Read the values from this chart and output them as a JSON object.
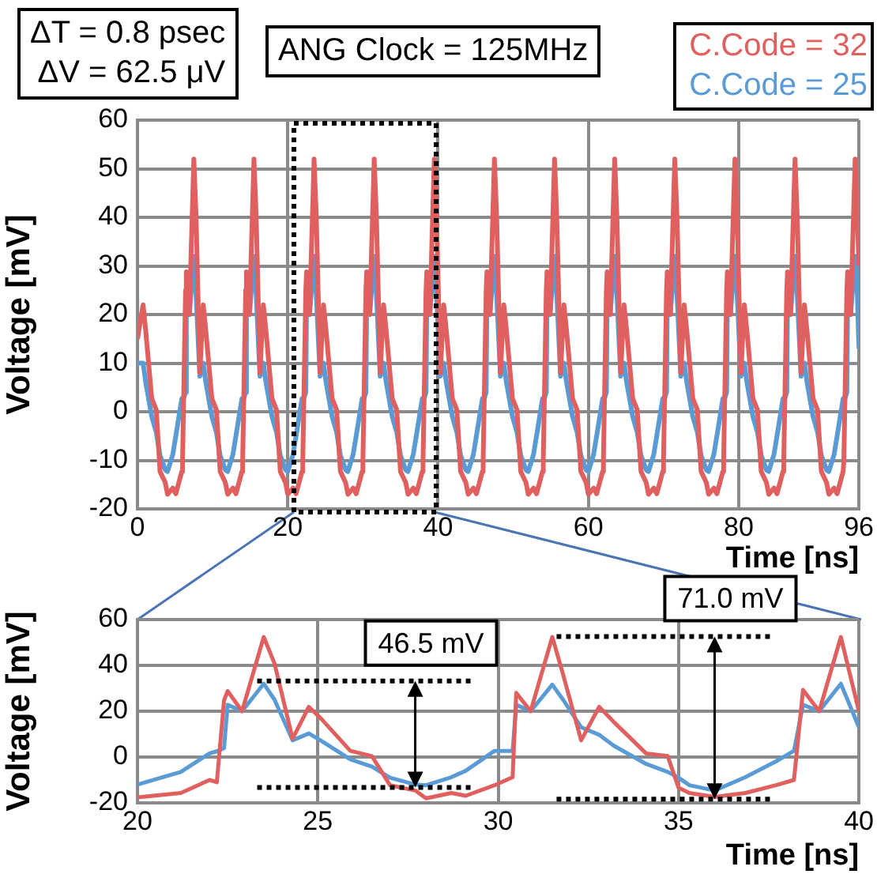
{
  "chart_data": [
    {
      "type": "line",
      "annotations": [
        "ΔT = 0.8 psec",
        "ΔV = 62.5 μV",
        "ANG Clock = 125MHz"
      ],
      "xlabel": "Time [ns]",
      "ylabel": "Voltage [mV]",
      "legend": "top right",
      "grid": true,
      "xlim": [
        0,
        96
      ],
      "xticks": [
        0,
        20,
        40,
        60,
        80,
        96
      ],
      "ylim": [
        -20,
        60
      ],
      "yticks": [
        -20,
        -10,
        0,
        10,
        20,
        30,
        40,
        50,
        60
      ],
      "x": [
        0,
        0.75,
        1.1,
        1.9,
        2.5,
        3,
        3.7,
        4,
        4.7,
        5.1,
        5.9,
        6,
        6.4,
        6.5,
        6.9,
        7.5,
        7.8,
        8.3,
        8.75,
        9.1,
        9.9,
        10.5,
        11,
        11.7,
        12,
        12.7,
        13.1,
        13.9,
        14,
        14.4,
        14.5,
        14.9,
        15.5,
        15.8,
        16.3,
        16.75,
        17.1,
        17.9,
        18.5,
        19,
        19.7,
        20,
        20.7,
        21.1,
        21.9,
        22,
        22.4,
        22.5,
        22.9,
        23.5,
        23.8,
        24.3,
        24.75,
        25.1,
        25.9,
        26.5,
        27,
        27.7,
        28,
        28.7,
        29.1,
        29.9,
        30,
        30.4,
        30.5,
        30.9,
        31.5,
        31.8,
        32.3,
        32.75,
        33.1,
        33.9,
        34.5,
        35,
        35.7,
        36,
        36.7,
        37.1,
        37.9,
        38,
        38.4,
        38.5,
        38.9,
        39.5,
        39.8,
        40.3,
        40.75,
        41.1,
        41.9,
        42.5,
        43,
        43.7,
        44,
        44.7,
        45.1,
        45.9,
        46,
        46.4,
        46.5,
        46.9,
        47.5,
        47.8,
        48.3,
        48.75,
        49.1,
        49.9,
        50.5,
        51,
        51.7,
        52,
        52.7,
        53.1,
        53.9,
        54,
        54.4,
        54.5,
        54.9,
        55.5,
        55.8,
        56.3,
        56.75,
        57.1,
        57.9,
        58.5,
        59,
        59.7,
        60,
        60.7,
        61.1,
        61.9,
        62,
        62.4,
        62.5,
        62.9,
        63.5,
        63.8,
        64.3,
        64.75,
        65.1,
        65.9,
        66.5,
        67,
        67.7,
        68,
        68.7,
        69.1,
        69.9,
        70,
        70.4,
        70.5,
        70.9,
        71.5,
        71.8,
        72.3,
        72.75,
        73.1,
        73.9,
        74.5,
        75,
        75.7,
        76,
        76.7,
        77.1,
        77.9,
        78,
        78.4,
        78.5,
        78.9,
        79.5,
        79.8,
        80.3,
        80.75,
        81.1,
        81.9,
        82.5,
        83,
        83.7,
        84,
        84.7,
        85.1,
        85.9,
        86,
        86.4,
        86.5,
        86.9,
        87.5,
        87.8,
        88.3,
        88.75,
        89.1,
        89.9,
        90.5,
        91,
        91.7,
        92,
        92.7,
        93.1,
        93.9,
        94,
        94.4,
        94.5,
        94.9,
        95.5,
        95.8,
        96
      ],
      "series": [
        {
          "name": "C.Code = 32",
          "color": "#e06060",
          "values": [
            15,
            22,
            16.6,
            2.7,
            0.4,
            -12.3,
            -14.6,
            -17,
            -15.7,
            -16.9,
            -12.3,
            -10,
            25,
            28.8,
            20,
            52,
            40,
            8,
            22,
            16.6,
            2.7,
            0.4,
            -12.3,
            -14.6,
            -17,
            -15.7,
            -16.9,
            -12.3,
            -10,
            25,
            28.8,
            20,
            52,
            40,
            8,
            22,
            16.6,
            2.7,
            0.4,
            -12.3,
            -14.6,
            -17,
            -15.7,
            -16.9,
            -12.3,
            -10,
            25,
            28.8,
            20,
            52,
            40,
            8,
            22,
            16.6,
            2.7,
            0.4,
            -12.3,
            -14.6,
            -17,
            -15.7,
            -16.9,
            -12.3,
            -10,
            25,
            28.8,
            20,
            52,
            40,
            8,
            22,
            16.6,
            2.7,
            0.4,
            -12.3,
            -14.6,
            -17,
            -15.7,
            -16.9,
            -12.3,
            -10,
            25,
            28.8,
            20,
            52,
            40,
            8,
            22,
            16.6,
            2.7,
            0.4,
            -12.3,
            -14.6,
            -17,
            -15.7,
            -16.9,
            -12.3,
            -10,
            25,
            28.8,
            20,
            52,
            40,
            8,
            22,
            16.6,
            2.7,
            0.4,
            -12.3,
            -14.6,
            -17,
            -15.7,
            -16.9,
            -12.3,
            -10,
            25,
            28.8,
            20,
            52,
            40,
            8,
            22,
            16.6,
            2.7,
            0.4,
            -12.3,
            -14.6,
            -17,
            -15.7,
            -16.9,
            -12.3,
            -10,
            25,
            28.8,
            20,
            52,
            40,
            8,
            22,
            16.6,
            2.7,
            0.4,
            -12.3,
            -14.6,
            -17,
            -15.7,
            -16.9,
            -12.3,
            -10,
            25,
            28.8,
            20,
            52,
            40,
            8,
            22,
            16.6,
            2.7,
            0.4,
            -12.3,
            -14.6,
            -17,
            -15.7,
            -16.9,
            -12.3,
            -10,
            25,
            28.8,
            20,
            52,
            40,
            8,
            22,
            16.6,
            2.7,
            0.4,
            -12.3,
            -14.6,
            -17,
            -15.7,
            -16.9,
            -12.3,
            -10,
            25,
            28.8,
            20,
            52,
            40,
            8,
            22,
            16.6,
            2.7,
            0.4,
            -12.3,
            -14.6,
            -17,
            -15.7,
            -16.9,
            -12.3,
            -10,
            25,
            28.8,
            20,
            52,
            40,
            30
          ]
        },
        {
          "name": "C.Code = 25",
          "color": "#5b9bd5",
          "values": [
            10,
            10,
            6,
            -1,
            -4.2,
            -9,
            -12,
            -12.3,
            -8.8,
            -5,
            2.7,
            2,
            4,
            22.8,
            20,
            32,
            24,
            7.3,
            10,
            6,
            -1,
            -4.2,
            -9,
            -12,
            -12.3,
            -8.8,
            -5,
            2.7,
            2,
            4,
            22.8,
            20,
            32,
            24,
            7.3,
            10,
            6,
            -1,
            -4.2,
            -9,
            -12,
            -12.3,
            -8.8,
            -5,
            2.7,
            2,
            4,
            22.8,
            20,
            32,
            24,
            7.3,
            10,
            6,
            -1,
            -4.2,
            -9,
            -12,
            -12.3,
            -8.8,
            -5,
            2.7,
            2,
            4,
            22.8,
            20,
            32,
            24,
            7.3,
            10,
            6,
            -1,
            -4.2,
            -9,
            -12,
            -12.3,
            -8.8,
            -5,
            2.7,
            2,
            4,
            22.8,
            20,
            32,
            24,
            7.3,
            10,
            6,
            -1,
            -4.2,
            -9,
            -12,
            -12.3,
            -8.8,
            -5,
            2.7,
            2,
            4,
            22.8,
            20,
            32,
            24,
            7.3,
            10,
            6,
            -1,
            -4.2,
            -9,
            -12,
            -12.3,
            -8.8,
            -5,
            2.7,
            2,
            4,
            22.8,
            20,
            32,
            24,
            7.3,
            10,
            6,
            -1,
            -4.2,
            -9,
            -12,
            -12.3,
            -8.8,
            -5,
            2.7,
            2,
            4,
            22.8,
            20,
            32,
            24,
            7.3,
            10,
            6,
            -1,
            -4.2,
            -9,
            -12,
            -12.3,
            -8.8,
            -5,
            2.7,
            2,
            4,
            22.8,
            20,
            32,
            24,
            7.3,
            10,
            6,
            -1,
            -4.2,
            -9,
            -12,
            -12.3,
            -8.8,
            -5,
            2.7,
            2,
            4,
            22.8,
            20,
            32,
            24,
            7.3,
            10,
            6,
            -1,
            -4.2,
            -9,
            -12,
            -12.3,
            -8.8,
            -5,
            2.7,
            2,
            4,
            22.8,
            20,
            32,
            24,
            7.3,
            10,
            6,
            -1,
            -4.2,
            -9,
            -12,
            -12.3,
            -8.8,
            -5,
            2.7,
            2,
            4,
            22.8,
            20,
            32,
            24,
            13
          ]
        }
      ]
    },
    {
      "type": "line",
      "xlabel": "Time [ns]",
      "ylabel": "Voltage [mV]",
      "grid": true,
      "xlim": [
        20,
        40
      ],
      "xticks": [
        20,
        25,
        30,
        35,
        40
      ],
      "ylim": [
        -20,
        60
      ],
      "yticks": [
        -20,
        0,
        20,
        40,
        60
      ],
      "annotations": [
        {
          "text": "46.5 mV",
          "x": 27.7,
          "y": 33.2
        },
        {
          "text": "71.0 mV",
          "x": 36,
          "y": 52.6
        }
      ],
      "ref_lines": [
        {
          "axis": "y",
          "value": 33.2,
          "color": "#000000",
          "line_style": "dotted"
        },
        {
          "axis": "y",
          "value": -13.3,
          "color": "#000000",
          "line_style": "dotted"
        },
        {
          "axis": "y",
          "value": 52.6,
          "color": "#000000",
          "line_style": "dotted"
        },
        {
          "axis": "y",
          "value": -18.4,
          "color": "#000000",
          "line_style": "dotted"
        }
      ],
      "x": [
        20,
        21.2,
        22,
        22.2,
        22.4,
        22.5,
        22.9,
        23.5,
        23.8,
        24.3,
        24.75,
        25.1,
        25.9,
        26.5,
        27,
        27.7,
        28,
        28.7,
        29.1,
        29.9,
        30.4,
        30.5,
        30.9,
        31.5,
        31.8,
        32.3,
        32.8,
        33.2,
        34.1,
        34.7,
        35,
        35.3,
        36,
        36.85,
        37.7,
        38.2,
        38.45,
        38.9,
        39.5,
        40
      ],
      "series": [
        {
          "color": "#e06060",
          "values": [
            -17.6,
            -15.7,
            -10,
            -11,
            24.7,
            28.8,
            20,
            52.4,
            40.8,
            8,
            21.9,
            16.6,
            2.7,
            0.4,
            -12.3,
            -14.6,
            -18,
            -15.7,
            -16.9,
            -12.3,
            -8.8,
            28,
            20,
            52.4,
            36,
            7.3,
            21.9,
            15.4,
            1.6,
            0.4,
            -13.4,
            -15.7,
            -17.4,
            -15.7,
            -12.3,
            -10,
            29.3,
            20,
            52.4,
            20
          ]
        },
        {
          "color": "#5b9bd5",
          "values": [
            -12,
            -6.5,
            1.6,
            2.5,
            3.9,
            22.8,
            20,
            32,
            25,
            7.3,
            10.3,
            7,
            -1,
            -4.2,
            -9,
            -12,
            -12.3,
            -8.8,
            -6,
            2.7,
            2.7,
            22.8,
            20,
            31.6,
            25,
            13,
            9.7,
            5,
            -3,
            -6.5,
            -9,
            -12.3,
            -14.6,
            -8.8,
            -1.9,
            2.7,
            22.8,
            20,
            32,
            13
          ]
        }
      ]
    }
  ]
}
